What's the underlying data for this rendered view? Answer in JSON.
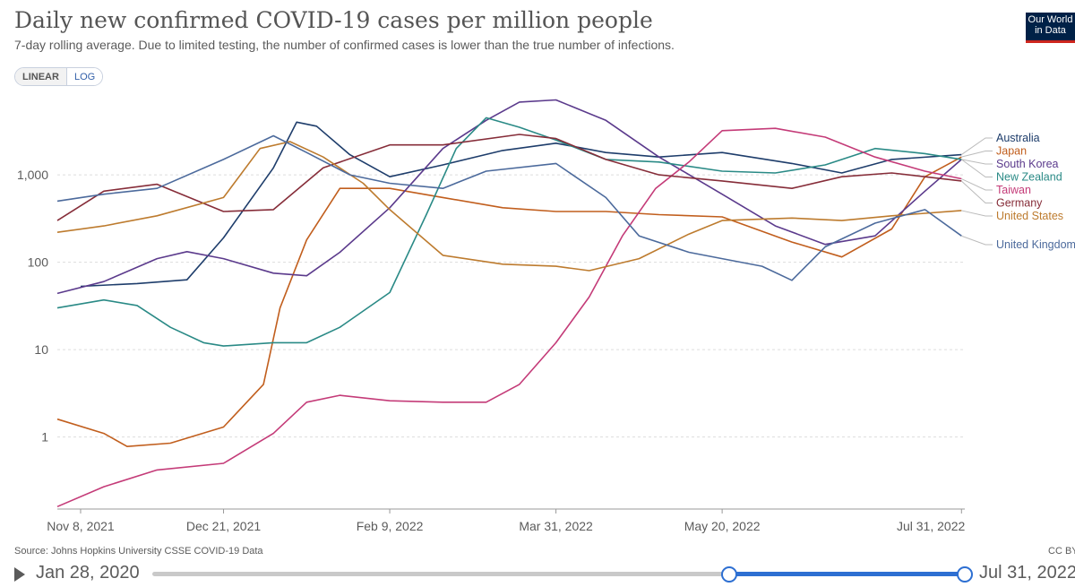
{
  "header": {
    "title": "Daily new confirmed COVID-19 cases per million people",
    "subtitle": "7-day rolling average. Due to limited testing, the number of confirmed cases is lower than the true number of infections.",
    "logo_line1": "Our World",
    "logo_line2": "in Data"
  },
  "controls": {
    "linear_label": "LINEAR",
    "log_label": "LOG",
    "selected": "LOG"
  },
  "footer": {
    "source": "Source: Johns Hopkins University CSSE COVID-19 Data",
    "license": "CC BY"
  },
  "timeline": {
    "start_date": "Jan 28, 2020",
    "end_date": "Jul 31, 2022",
    "selected_start_fraction": 0.71,
    "selected_end_fraction": 1.0
  },
  "colors": {
    "brand": "#002147",
    "accent": "#ce261e",
    "timeline_active": "#2d6fd2"
  },
  "chart_data": {
    "type": "line",
    "title": "Daily new confirmed COVID-19 cases per million people",
    "yscale": "log",
    "ylim": [
      0.15,
      9000
    ],
    "xlim": [
      "2021-11-01",
      "2022-08-01"
    ],
    "grid": true,
    "legend_placement": "right (labels at line ends)",
    "x_ticks": [
      "2021-11-08",
      "2021-12-21",
      "2022-02-09",
      "2022-03-31",
      "2022-05-20",
      "2022-07-31"
    ],
    "x_tick_labels": [
      "Nov 8, 2021",
      "Dec 21, 2021",
      "Feb 9, 2022",
      "Mar 31, 2022",
      "May 20, 2022",
      "Jul 31, 2022"
    ],
    "y_ticks": [
      1,
      10,
      100,
      1000
    ],
    "y_tick_labels": [
      "1",
      "10",
      "100",
      "1,000"
    ],
    "series": [
      {
        "name": "Australia",
        "color": "#1e3d6b",
        "points": [
          [
            "2021-11-08",
            53
          ],
          [
            "2021-11-25",
            57
          ],
          [
            "2021-12-10",
            63
          ],
          [
            "2021-12-21",
            190
          ],
          [
            "2022-01-05",
            1200
          ],
          [
            "2022-01-12",
            4000
          ],
          [
            "2022-01-18",
            3600
          ],
          [
            "2022-01-28",
            1700
          ],
          [
            "2022-02-09",
            950
          ],
          [
            "2022-02-25",
            1300
          ],
          [
            "2022-03-15",
            1900
          ],
          [
            "2022-03-31",
            2300
          ],
          [
            "2022-04-15",
            1800
          ],
          [
            "2022-05-01",
            1600
          ],
          [
            "2022-05-20",
            1800
          ],
          [
            "2022-06-10",
            1350
          ],
          [
            "2022-06-25",
            1050
          ],
          [
            "2022-07-10",
            1500
          ],
          [
            "2022-07-31",
            1700
          ]
        ]
      },
      {
        "name": "Japan",
        "color": "#c15e1d",
        "points": [
          [
            "2021-11-01",
            1.6
          ],
          [
            "2021-11-15",
            1.1
          ],
          [
            "2021-11-22",
            0.78
          ],
          [
            "2021-12-05",
            0.85
          ],
          [
            "2021-12-21",
            1.3
          ],
          [
            "2022-01-02",
            4
          ],
          [
            "2022-01-07",
            30
          ],
          [
            "2022-01-15",
            180
          ],
          [
            "2022-01-25",
            700
          ],
          [
            "2022-02-09",
            700
          ],
          [
            "2022-02-25",
            550
          ],
          [
            "2022-03-15",
            420
          ],
          [
            "2022-03-31",
            380
          ],
          [
            "2022-04-15",
            380
          ],
          [
            "2022-05-01",
            350
          ],
          [
            "2022-05-20",
            330
          ],
          [
            "2022-06-10",
            170
          ],
          [
            "2022-06-25",
            115
          ],
          [
            "2022-07-10",
            240
          ],
          [
            "2022-07-20",
            950
          ],
          [
            "2022-07-31",
            1600
          ]
        ]
      },
      {
        "name": "South Korea",
        "color": "#5b3a8c",
        "points": [
          [
            "2021-11-01",
            44
          ],
          [
            "2021-11-15",
            60
          ],
          [
            "2021-12-01",
            110
          ],
          [
            "2021-12-10",
            132
          ],
          [
            "2021-12-21",
            110
          ],
          [
            "2022-01-05",
            75
          ],
          [
            "2022-01-15",
            70
          ],
          [
            "2022-01-25",
            130
          ],
          [
            "2022-02-09",
            420
          ],
          [
            "2022-02-25",
            2000
          ],
          [
            "2022-03-10",
            4200
          ],
          [
            "2022-03-20",
            6800
          ],
          [
            "2022-03-31",
            7200
          ],
          [
            "2022-04-15",
            4200
          ],
          [
            "2022-05-01",
            1600
          ],
          [
            "2022-05-20",
            600
          ],
          [
            "2022-06-05",
            260
          ],
          [
            "2022-06-20",
            160
          ],
          [
            "2022-07-05",
            200
          ],
          [
            "2022-07-20",
            650
          ],
          [
            "2022-07-31",
            1500
          ]
        ]
      },
      {
        "name": "New Zealand",
        "color": "#2a8a86",
        "points": [
          [
            "2021-11-01",
            30
          ],
          [
            "2021-11-15",
            37
          ],
          [
            "2021-11-25",
            32
          ],
          [
            "2021-12-05",
            18
          ],
          [
            "2021-12-15",
            12
          ],
          [
            "2021-12-21",
            11
          ],
          [
            "2022-01-05",
            12
          ],
          [
            "2022-01-15",
            12
          ],
          [
            "2022-01-25",
            18
          ],
          [
            "2022-02-09",
            45
          ],
          [
            "2022-02-20",
            350
          ],
          [
            "2022-03-01",
            2000
          ],
          [
            "2022-03-10",
            4500
          ],
          [
            "2022-03-20",
            3500
          ],
          [
            "2022-03-31",
            2500
          ],
          [
            "2022-04-15",
            1500
          ],
          [
            "2022-05-01",
            1400
          ],
          [
            "2022-05-20",
            1100
          ],
          [
            "2022-06-05",
            1050
          ],
          [
            "2022-06-20",
            1300
          ],
          [
            "2022-07-05",
            2000
          ],
          [
            "2022-07-20",
            1750
          ],
          [
            "2022-07-31",
            1500
          ]
        ]
      },
      {
        "name": "Taiwan",
        "color": "#c43b78",
        "points": [
          [
            "2021-11-01",
            0.16
          ],
          [
            "2021-11-15",
            0.27
          ],
          [
            "2021-12-01",
            0.42
          ],
          [
            "2021-12-21",
            0.5
          ],
          [
            "2022-01-05",
            1.1
          ],
          [
            "2022-01-15",
            2.5
          ],
          [
            "2022-01-25",
            3
          ],
          [
            "2022-02-09",
            2.6
          ],
          [
            "2022-02-25",
            2.5
          ],
          [
            "2022-03-10",
            2.5
          ],
          [
            "2022-03-20",
            4
          ],
          [
            "2022-03-31",
            12
          ],
          [
            "2022-04-10",
            40
          ],
          [
            "2022-04-20",
            200
          ],
          [
            "2022-04-30",
            700
          ],
          [
            "2022-05-10",
            1400
          ],
          [
            "2022-05-20",
            3200
          ],
          [
            "2022-06-05",
            3400
          ],
          [
            "2022-06-20",
            2700
          ],
          [
            "2022-07-05",
            1600
          ],
          [
            "2022-07-20",
            1100
          ],
          [
            "2022-07-31",
            900
          ]
        ]
      },
      {
        "name": "Germany",
        "color": "#862d39",
        "points": [
          [
            "2021-11-01",
            300
          ],
          [
            "2021-11-15",
            650
          ],
          [
            "2021-12-01",
            780
          ],
          [
            "2021-12-21",
            380
          ],
          [
            "2022-01-05",
            400
          ],
          [
            "2022-01-20",
            1200
          ],
          [
            "2022-02-09",
            2200
          ],
          [
            "2022-02-25",
            2200
          ],
          [
            "2022-03-20",
            2900
          ],
          [
            "2022-03-31",
            2600
          ],
          [
            "2022-04-15",
            1500
          ],
          [
            "2022-05-01",
            1000
          ],
          [
            "2022-05-20",
            850
          ],
          [
            "2022-06-10",
            700
          ],
          [
            "2022-06-25",
            950
          ],
          [
            "2022-07-10",
            1050
          ],
          [
            "2022-07-31",
            850
          ]
        ]
      },
      {
        "name": "United States",
        "color": "#bd7b2e",
        "points": [
          [
            "2021-11-01",
            220
          ],
          [
            "2021-11-15",
            260
          ],
          [
            "2021-12-01",
            340
          ],
          [
            "2021-12-21",
            550
          ],
          [
            "2022-01-01",
            2000
          ],
          [
            "2022-01-10",
            2400
          ],
          [
            "2022-01-20",
            1600
          ],
          [
            "2022-02-01",
            800
          ],
          [
            "2022-02-09",
            400
          ],
          [
            "2022-02-25",
            120
          ],
          [
            "2022-03-15",
            95
          ],
          [
            "2022-03-31",
            90
          ],
          [
            "2022-04-10",
            80
          ],
          [
            "2022-04-25",
            110
          ],
          [
            "2022-05-10",
            210
          ],
          [
            "2022-05-20",
            300
          ],
          [
            "2022-06-10",
            320
          ],
          [
            "2022-06-25",
            300
          ],
          [
            "2022-07-10",
            340
          ],
          [
            "2022-07-31",
            390
          ]
        ]
      },
      {
        "name": "United Kingdom",
        "color": "#4c6a9c",
        "points": [
          [
            "2021-11-01",
            500
          ],
          [
            "2021-11-15",
            600
          ],
          [
            "2021-12-01",
            700
          ],
          [
            "2021-12-21",
            1500
          ],
          [
            "2022-01-05",
            2800
          ],
          [
            "2022-01-15",
            1800
          ],
          [
            "2022-01-28",
            1000
          ],
          [
            "2022-02-09",
            800
          ],
          [
            "2022-02-25",
            700
          ],
          [
            "2022-03-10",
            1100
          ],
          [
            "2022-03-31",
            1350
          ],
          [
            "2022-04-15",
            550
          ],
          [
            "2022-04-25",
            200
          ],
          [
            "2022-05-10",
            130
          ],
          [
            "2022-05-20",
            110
          ],
          [
            "2022-06-01",
            90
          ],
          [
            "2022-06-10",
            62
          ],
          [
            "2022-06-20",
            150
          ],
          [
            "2022-07-05",
            280
          ],
          [
            "2022-07-20",
            400
          ],
          [
            "2022-07-31",
            200
          ]
        ]
      }
    ],
    "label_order": [
      "Australia",
      "Japan",
      "South Korea",
      "New Zealand",
      "Taiwan",
      "Germany",
      "United States",
      "United Kingdom"
    ]
  }
}
